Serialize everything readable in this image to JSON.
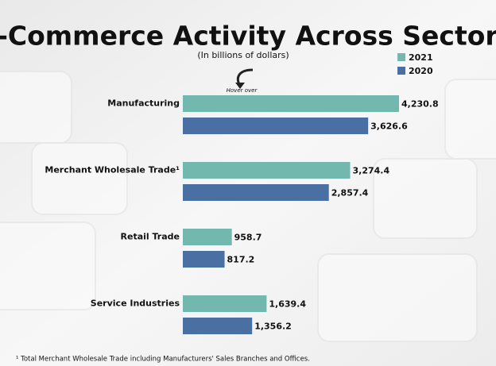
{
  "chart_data": {
    "type": "hbar",
    "title": "E-Commerce Activity Across Sectors",
    "subtitle": "(In billions of dollars)",
    "annotation": "Hover over",
    "footnote": "¹ Total Merchant Wholesale Trade including Manufacturers' Sales Branches and Offices.",
    "legend": "top-right",
    "categories": [
      "Manufacturing",
      "Merchant Wholesale Trade¹",
      "Retail Trade",
      "Service Industries"
    ],
    "series": [
      {
        "name": "2021",
        "color": "#72b8ae",
        "values": [
          4230.8,
          3274.4,
          958.7,
          1639.4
        ],
        "value_labels": [
          "4,230.8",
          "3,274.4",
          "958.7",
          "1,639.4"
        ]
      },
      {
        "name": "2020",
        "color": "#4a70a3",
        "values": [
          3626.6,
          2857.4,
          817.2,
          1356.2
        ],
        "value_labels": [
          "3,626.6",
          "2,857.4",
          "817.2",
          "1,356.2"
        ]
      }
    ]
  }
}
